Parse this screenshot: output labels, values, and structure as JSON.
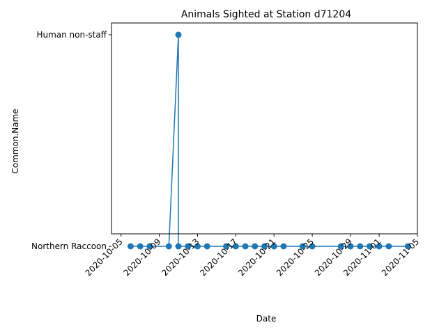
{
  "chart_data": {
    "type": "line",
    "title": "Animals Sighted at Station d71204",
    "xlabel": "Date",
    "ylabel": "Common.Name",
    "categories": [
      "Northern Raccoon",
      "Human non-staff"
    ],
    "x_ticks": [
      "2020-10-05",
      "2020-10-09",
      "2020-10-13",
      "2020-10-17",
      "2020-10-21",
      "2020-10-25",
      "2020-10-29",
      "2020-11-01",
      "2020-11-05"
    ],
    "xlim": [
      "2020-10-04",
      "2020-11-05"
    ],
    "grid": false,
    "marker": "circle",
    "color": "#1f77b4",
    "series": [
      {
        "points": [
          {
            "x": "2020-10-06",
            "y": "Northern Raccoon"
          },
          {
            "x": "2020-10-07",
            "y": "Northern Raccoon"
          },
          {
            "x": "2020-10-08",
            "y": "Northern Raccoon"
          },
          {
            "x": "2020-10-10",
            "y": "Northern Raccoon"
          },
          {
            "x": "2020-10-11",
            "y": "Human non-staff"
          },
          {
            "x": "2020-10-11",
            "y": "Northern Raccoon"
          },
          {
            "x": "2020-10-12",
            "y": "Northern Raccoon"
          },
          {
            "x": "2020-10-13",
            "y": "Northern Raccoon"
          },
          {
            "x": "2020-10-14",
            "y": "Northern Raccoon"
          },
          {
            "x": "2020-10-16",
            "y": "Northern Raccoon"
          },
          {
            "x": "2020-10-17",
            "y": "Northern Raccoon"
          },
          {
            "x": "2020-10-18",
            "y": "Northern Raccoon"
          },
          {
            "x": "2020-10-19",
            "y": "Northern Raccoon"
          },
          {
            "x": "2020-10-20",
            "y": "Northern Raccoon"
          },
          {
            "x": "2020-10-21",
            "y": "Northern Raccoon"
          },
          {
            "x": "2020-10-22",
            "y": "Northern Raccoon"
          },
          {
            "x": "2020-10-24",
            "y": "Northern Raccoon"
          },
          {
            "x": "2020-10-25",
            "y": "Northern Raccoon"
          },
          {
            "x": "2020-10-28",
            "y": "Northern Raccoon"
          },
          {
            "x": "2020-10-29",
            "y": "Northern Raccoon"
          },
          {
            "x": "2020-10-30",
            "y": "Northern Raccoon"
          },
          {
            "x": "2020-10-31",
            "y": "Northern Raccoon"
          },
          {
            "x": "2020-11-01",
            "y": "Northern Raccoon"
          },
          {
            "x": "2020-11-02",
            "y": "Northern Raccoon"
          },
          {
            "x": "2020-11-04",
            "y": "Northern Raccoon"
          }
        ]
      }
    ]
  }
}
